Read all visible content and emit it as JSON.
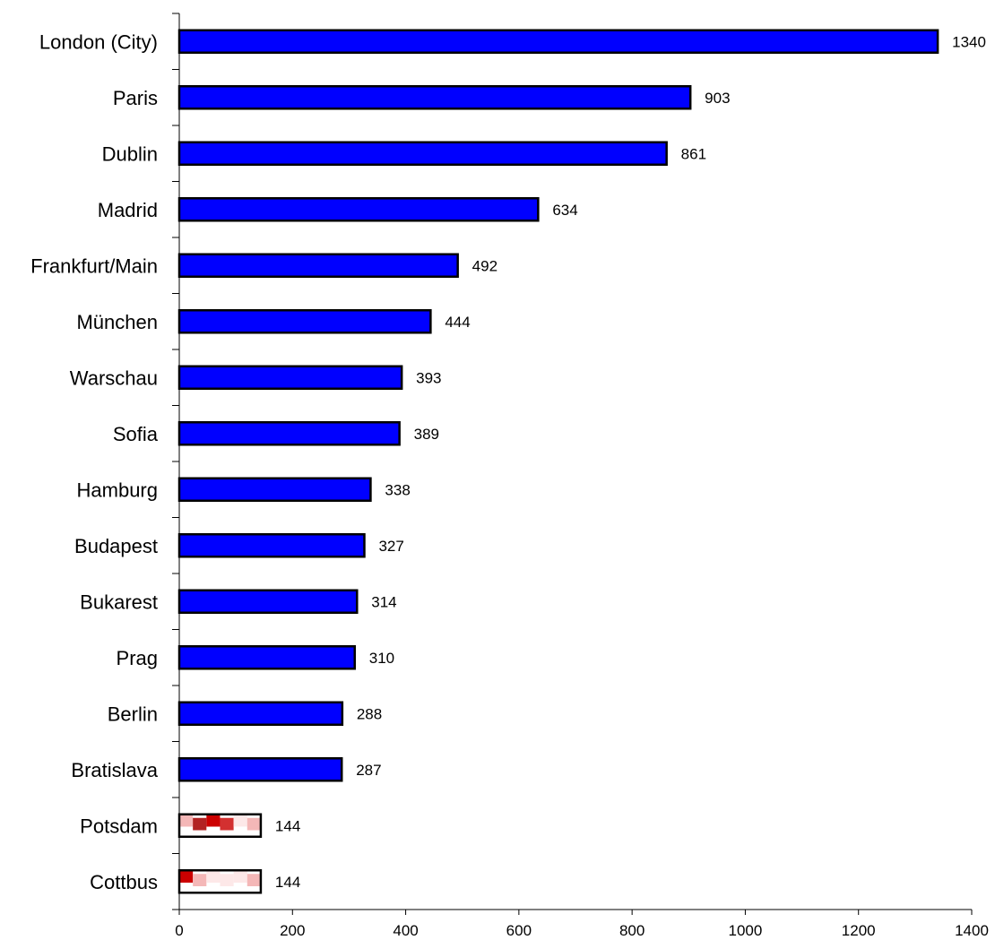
{
  "chart_data": {
    "type": "bar",
    "orientation": "horizontal",
    "categories": [
      "London (City)",
      "Paris",
      "Dublin",
      "Madrid",
      "Frankfurt/Main",
      "München",
      "Warschau",
      "Sofia",
      "Hamburg",
      "Budapest",
      "Bukarest",
      "Prag",
      "Berlin",
      "Bratislava",
      "Potsdam",
      "Cottbus"
    ],
    "values": [
      1340,
      903,
      861,
      634,
      492,
      444,
      393,
      389,
      338,
      327,
      314,
      310,
      288,
      287,
      144,
      144
    ],
    "data_labels": [
      "1340",
      "903",
      "861",
      "634",
      "492",
      "444",
      "393",
      "389",
      "338",
      "327",
      "314",
      "310",
      "288",
      "287",
      "144",
      "144"
    ],
    "xlim": [
      0,
      1400
    ],
    "x_ticks": [
      0,
      200,
      400,
      600,
      800,
      1000,
      1200,
      1400
    ],
    "x_tick_labels": [
      "0",
      "200",
      "400",
      "600",
      "800",
      "1000",
      "1200",
      "1400"
    ],
    "grid": false,
    "bar_color": "#0000ff",
    "bar_border_color": "#000000",
    "highlight_categories": [
      "Potsdam",
      "Cottbus"
    ],
    "highlight_fill": "#ffffff",
    "highlight_accent_colors": [
      "#cc0000",
      "#b22222",
      "#d33030",
      "#f4b7b7",
      "#fde8e8"
    ]
  }
}
